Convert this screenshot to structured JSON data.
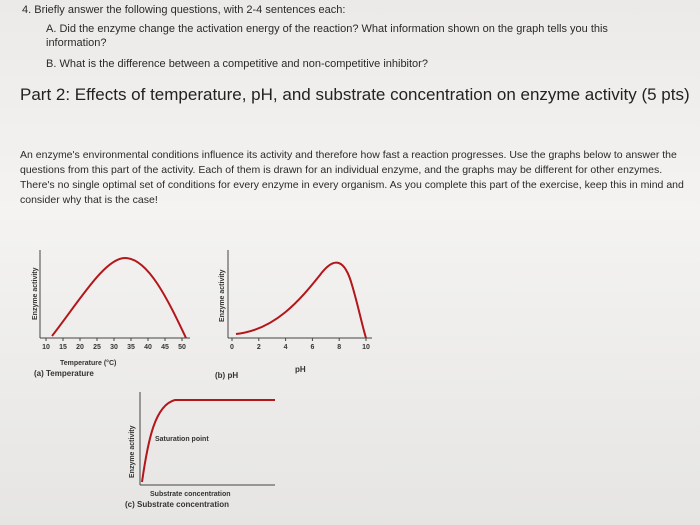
{
  "questions": {
    "heading": "4. Briefly answer the following questions, with 2-4 sentences each:",
    "items": [
      "A. Did the enzyme change the activation energy of the reaction? What information shown on the graph tells you this information?",
      "B. What is the difference between a competitive and non-competitive inhibitor?"
    ]
  },
  "part2": {
    "title": "Part 2:  Effects of temperature, pH, and substrate concentration on enzyme activity (5 pts)",
    "paragraph": "An enzyme's environmental conditions influence its activity and therefore how fast a reaction progresses. Use the graphs below to answer the questions from this part of the activity. Each of them is drawn for an individual enzyme, and the graphs may be different for other enzymes. There's no single optimal set of conditions for every enzyme in every organism. As you complete this part of the exercise, keep this in mind and consider why that is the case!"
  },
  "figures": [
    {
      "y_label": "Enzyme activity",
      "x_ticks": [
        10,
        15,
        20,
        25,
        30,
        35,
        40,
        45,
        50
      ],
      "x_label": "Temperature (°C)",
      "caption": "(a) Temperature"
    },
    {
      "y_label": "Enzyme activity",
      "x_ticks": [
        0,
        2,
        4,
        6,
        8,
        10
      ],
      "x_label": "pH",
      "caption": "(b) pH"
    },
    {
      "y_label": "Enzyme activity",
      "annotation": "Saturation point",
      "x_label": "Substrate concentration",
      "caption": "(c) Substrate concentration"
    }
  ]
}
